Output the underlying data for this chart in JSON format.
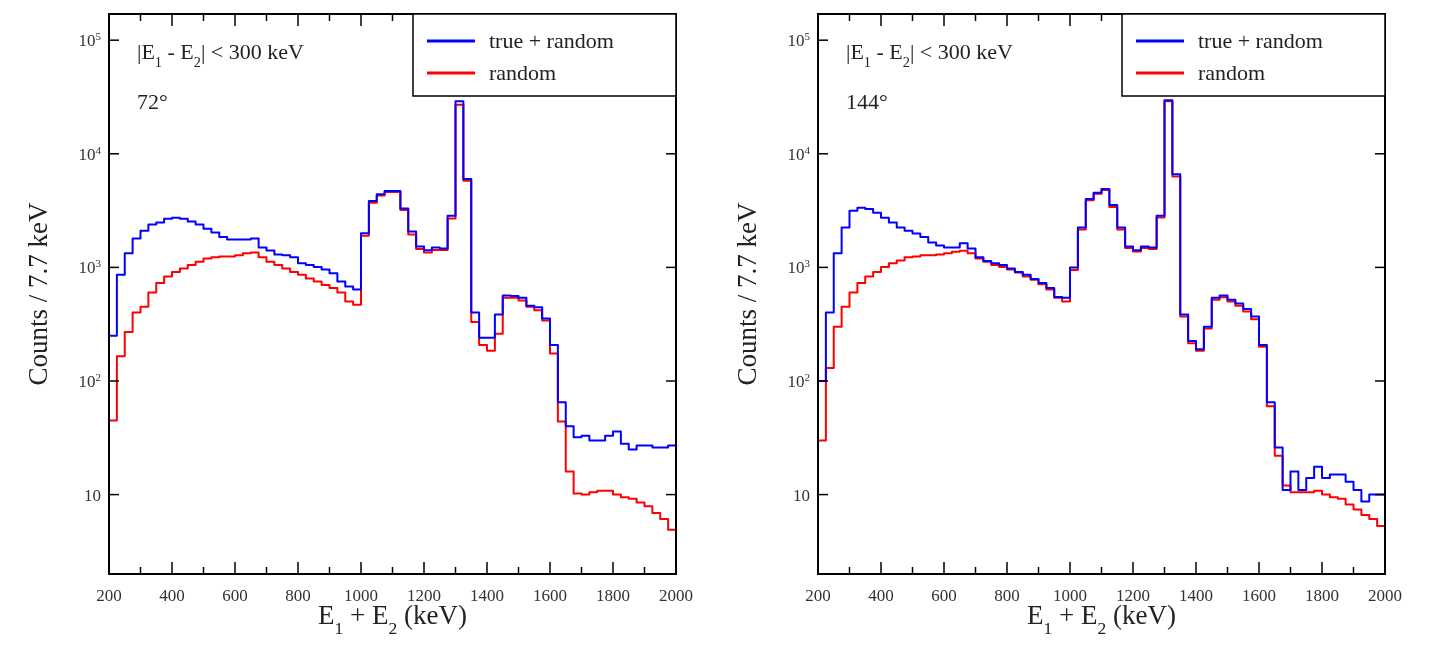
{
  "chart_data": [
    {
      "type": "histogram",
      "xlabel": "E$_{1}$ + E$_{2}$ (keV)",
      "ylabel": "Counts / 7.7 keV",
      "annotations": [
        "|E$_{1}$ - E$_{2}$| < 300 keV",
        "72°"
      ],
      "legend": "top right",
      "log": "y",
      "xlim": [
        200,
        2000
      ],
      "ylim": [
        2,
        170000
      ],
      "xticks": [
        200,
        {
          "value": 300,
          "label": null
        },
        400,
        {
          "value": 500,
          "label": null
        },
        600,
        {
          "value": 700,
          "label": null
        },
        800,
        {
          "value": 900,
          "label": null
        },
        1000,
        {
          "value": 1100,
          "label": null
        },
        1200,
        {
          "value": 1300,
          "label": null
        },
        1400,
        {
          "value": 1500,
          "label": null
        },
        1600,
        {
          "value": 1700,
          "label": null
        },
        1800,
        {
          "value": 1900,
          "label": null
        },
        2000
      ],
      "yticks": [
        {
          "value": 10,
          "label": "10"
        },
        {
          "value": 100,
          "label": "10$^{2}$"
        },
        {
          "value": 1000,
          "label": "10$^{3}$"
        },
        {
          "value": 10000,
          "label": "10$^{4}$"
        },
        {
          "value": 100000,
          "label": "10$^{5}$"
        }
      ],
      "bins": [
        200,
        225,
        250,
        275,
        300,
        325,
        350,
        375,
        400,
        425,
        450,
        475,
        500,
        525,
        550,
        575,
        600,
        625,
        650,
        675,
        700,
        725,
        750,
        775,
        800,
        825,
        850,
        875,
        900,
        925,
        950,
        975,
        1000,
        1025,
        1050,
        1075,
        1100,
        1125,
        1150,
        1175,
        1200,
        1225,
        1250,
        1275,
        1300,
        1325,
        1350,
        1375,
        1400,
        1425,
        1450,
        1475,
        1500,
        1525,
        1550,
        1575,
        1600,
        1625,
        1650,
        1675,
        1700,
        1725,
        1750,
        1775,
        1800,
        1825,
        1850,
        1875,
        1900,
        1925,
        1950,
        1975,
        2000
      ],
      "series": [
        {
          "name": "true + random",
          "color": "#0000ff",
          "values": [
            250,
            860,
            1330,
            1800,
            2100,
            2380,
            2480,
            2680,
            2730,
            2680,
            2530,
            2380,
            2190,
            2030,
            1850,
            1760,
            1760,
            1760,
            1800,
            1500,
            1410,
            1300,
            1280,
            1230,
            1090,
            1050,
            1010,
            960,
            890,
            750,
            680,
            640,
            2000,
            3840,
            4400,
            4700,
            4700,
            3300,
            2070,
            1530,
            1415,
            1500,
            1470,
            2850,
            29000,
            6000,
            400,
            240,
            240,
            385,
            565,
            560,
            540,
            460,
            445,
            355,
            207,
            65,
            40,
            32,
            33,
            30,
            30,
            33,
            36,
            28,
            25,
            27,
            27,
            26,
            26,
            27
          ]
        },
        {
          "name": "random",
          "color": "#ff0000",
          "values": [
            45,
            165,
            270,
            400,
            450,
            600,
            730,
            830,
            910,
            980,
            1050,
            1120,
            1200,
            1230,
            1250,
            1250,
            1280,
            1330,
            1350,
            1230,
            1120,
            1050,
            980,
            910,
            860,
            800,
            750,
            700,
            660,
            600,
            500,
            470,
            1900,
            3700,
            4300,
            4600,
            4600,
            3200,
            1950,
            1450,
            1350,
            1420,
            1420,
            2700,
            27000,
            5800,
            330,
            207,
            185,
            260,
            540,
            540,
            510,
            450,
            420,
            340,
            175,
            44,
            16,
            10.2,
            10,
            10.5,
            10.8,
            10.8,
            10,
            9.5,
            9.2,
            8.5,
            7.9,
            6.9,
            6.1,
            4.9
          ]
        }
      ]
    },
    {
      "type": "histogram",
      "xlabel": "E$_{1}$ + E$_{2}$ (keV)",
      "ylabel": "Counts / 7.7 keV",
      "annotations": [
        "|E$_{1}$ - E$_{2}$| < 300 keV",
        "144°"
      ],
      "legend": "top right",
      "log": "y",
      "xlim": [
        200,
        2000
      ],
      "ylim": [
        2,
        170000
      ],
      "xticks": [
        200,
        {
          "value": 300,
          "label": null
        },
        400,
        {
          "value": 500,
          "label": null
        },
        600,
        {
          "value": 700,
          "label": null
        },
        800,
        {
          "value": 900,
          "label": null
        },
        1000,
        {
          "value": 1100,
          "label": null
        },
        1200,
        {
          "value": 1300,
          "label": null
        },
        1400,
        {
          "value": 1500,
          "label": null
        },
        1600,
        {
          "value": 1700,
          "label": null
        },
        1800,
        {
          "value": 1900,
          "label": null
        },
        2000
      ],
      "yticks": [
        {
          "value": 10,
          "label": "10"
        },
        {
          "value": 100,
          "label": "10$^{2}$"
        },
        {
          "value": 1000,
          "label": "10$^{3}$"
        },
        {
          "value": 10000,
          "label": "10$^{4}$"
        },
        {
          "value": 100000,
          "label": "10$^{5}$"
        }
      ],
      "bins": [
        200,
        225,
        250,
        275,
        300,
        325,
        350,
        375,
        400,
        425,
        450,
        475,
        500,
        525,
        550,
        575,
        600,
        625,
        650,
        675,
        700,
        725,
        750,
        775,
        800,
        825,
        850,
        875,
        900,
        925,
        950,
        975,
        1000,
        1025,
        1050,
        1075,
        1100,
        1125,
        1150,
        1175,
        1200,
        1225,
        1250,
        1275,
        1300,
        1325,
        1350,
        1375,
        1400,
        1425,
        1450,
        1475,
        1500,
        1525,
        1550,
        1575,
        1600,
        1625,
        1650,
        1675,
        1700,
        1725,
        1750,
        1775,
        1800,
        1825,
        1850,
        1875,
        1900,
        1925,
        1950,
        1975,
        2000
      ],
      "series": [
        {
          "name": "true + random",
          "color": "#0000ff",
          "values": [
            100,
            400,
            1330,
            2250,
            3150,
            3350,
            3270,
            3030,
            2730,
            2480,
            2250,
            2100,
            1990,
            1850,
            1660,
            1560,
            1500,
            1500,
            1630,
            1470,
            1230,
            1140,
            1090,
            1050,
            980,
            910,
            860,
            790,
            730,
            660,
            550,
            540,
            1000,
            2250,
            4000,
            4550,
            4900,
            3550,
            2250,
            1530,
            1415,
            1530,
            1500,
            2850,
            29600,
            6600,
            385,
            225,
            190,
            300,
            540,
            565,
            520,
            480,
            430,
            370,
            207,
            65,
            26,
            11,
            16,
            11,
            14,
            17.6,
            14,
            15,
            15,
            13,
            11,
            8.7,
            10,
            10
          ]
        },
        {
          "name": "random",
          "color": "#ff0000",
          "values": [
            30,
            130,
            300,
            450,
            600,
            730,
            830,
            910,
            1010,
            1090,
            1150,
            1230,
            1250,
            1280,
            1280,
            1300,
            1330,
            1370,
            1400,
            1330,
            1200,
            1120,
            1050,
            1010,
            960,
            900,
            830,
            780,
            710,
            640,
            540,
            500,
            950,
            2150,
            3900,
            4450,
            4800,
            3400,
            2150,
            1480,
            1380,
            1480,
            1450,
            2750,
            29000,
            6300,
            370,
            215,
            185,
            290,
            520,
            545,
            500,
            460,
            410,
            350,
            200,
            60,
            22,
            12,
            10.5,
            10.5,
            10.5,
            10.8,
            10,
            9.5,
            9.2,
            8.2,
            7.4,
            6.6,
            6.1,
            5.3
          ]
        }
      ]
    }
  ]
}
